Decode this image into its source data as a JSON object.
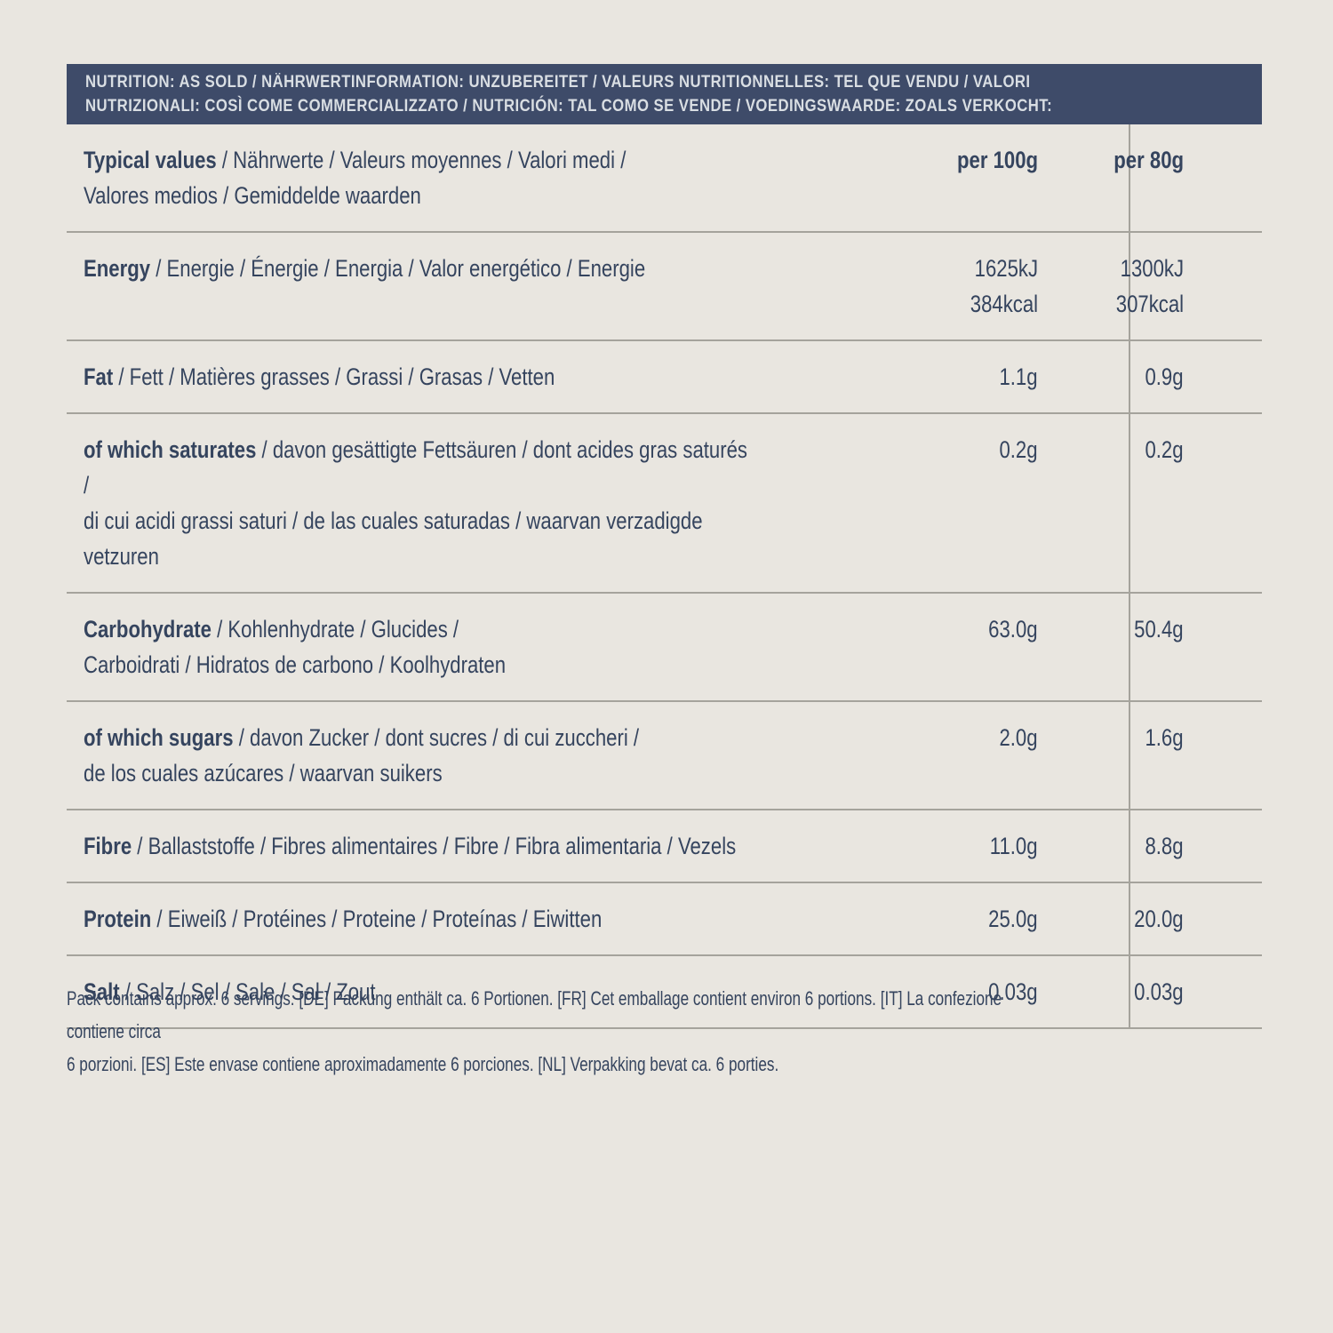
{
  "colors": {
    "background": "#e9e6e0",
    "header_bar": "#3e4b69",
    "header_text": "#d9dee3",
    "body_text": "#35445e",
    "divider": "#a5a39c"
  },
  "header": {
    "text": "NUTRITION: AS SOLD / NÄHRWERTINFORMATION: UNZUBEREITET / VALEURS NUTRITIONNELLES: TEL QUE VENDU / VALORI\nNUTRIZIONALI: COSÌ COME COMMERCIALIZZATO / NUTRICIÓN: TAL COMO SE VENDE / VOEDINGSWAARDE: ZOALS VERKOCHT:"
  },
  "table": {
    "typical_values": {
      "label_bold": "Typical values",
      "label_rest": " / Nährwerte / Valeurs moyennes / Valori medi /\nValores medios / Gemiddelde waarden"
    },
    "column_headers": {
      "per_100g": "per 100g",
      "per_80g": "per 80g"
    },
    "rows": [
      {
        "label_bold": "Energy",
        "label_rest": " / Energie / Énergie / Energia / Valor energético / Energie",
        "per100g": "1625kJ\n384kcal",
        "per80g": "1300kJ\n307kcal"
      },
      {
        "label_bold": "Fat",
        "label_rest": " / Fett / Matières grasses / Grassi / Grasas / Vetten",
        "per100g": "1.1g",
        "per80g": "0.9g"
      },
      {
        "label_bold": "of which saturates",
        "label_rest": " / davon gesättigte Fettsäuren / dont acides gras saturés /\ndi cui acidi grassi saturi / de las cuales saturadas / waarvan verzadigde vetzuren",
        "per100g": "0.2g",
        "per80g": "0.2g"
      },
      {
        "label_bold": "Carbohydrate",
        "label_rest": " / Kohlenhydrate / Glucides /\nCarboidrati / Hidratos de carbono / Koolhydraten",
        "per100g": "63.0g",
        "per80g": "50.4g"
      },
      {
        "label_bold": "of which sugars",
        "label_rest": " / davon Zucker / dont sucres / di cui zuccheri /\nde los cuales azúcares / waarvan suikers",
        "per100g": "2.0g",
        "per80g": "1.6g"
      },
      {
        "label_bold": "Fibre",
        "label_rest": " / Ballaststoffe / Fibres alimentaires / Fibre / Fibra alimentaria / Vezels",
        "per100g": "11.0g",
        "per80g": "8.8g"
      },
      {
        "label_bold": "Protein",
        "label_rest": " / Eiweiß / Protéines / Proteine / Proteínas / Eiwitten",
        "per100g": "25.0g",
        "per80g": "20.0g"
      },
      {
        "label_bold": "Salt",
        "label_rest": " / Salz / Sel / Sale / Sal / Zout",
        "per100g": "0.03g",
        "per80g": "0.03g"
      }
    ]
  },
  "footer": {
    "text": "Pack contains approx. 6 servings. [DE] Packung enthält ca. 6 Portionen. [FR] Cet emballage contient environ 6 portions. [IT] La confezione contiene circa\n6 porzioni. [ES] Este envase contiene aproximadamente 6 porciones. [NL] Verpakking bevat ca. 6 porties."
  }
}
